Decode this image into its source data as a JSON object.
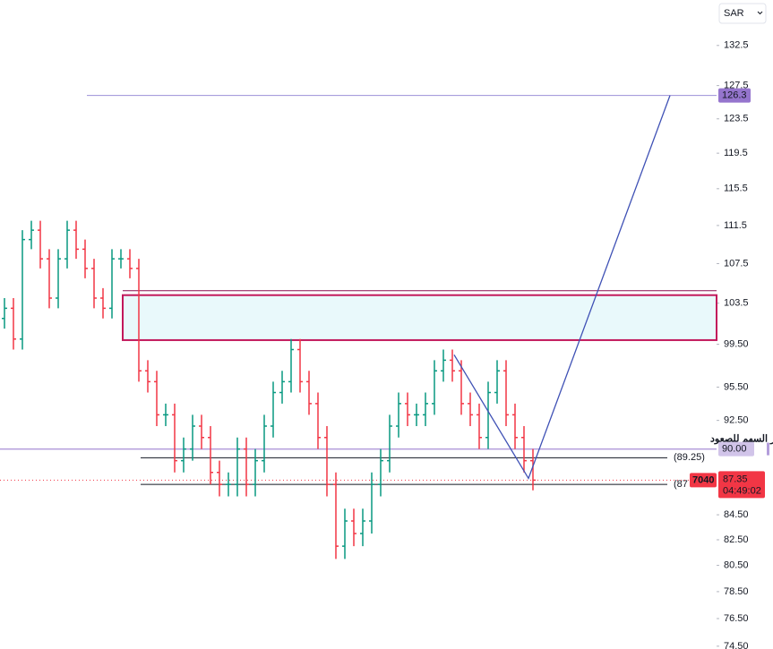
{
  "chart_data": {
    "type": "ohlc",
    "currency": "SAR",
    "open": [
      102,
      103,
      100,
      110,
      111,
      108,
      104,
      108,
      111,
      109,
      107,
      104,
      103,
      108,
      108,
      107,
      97,
      96,
      93,
      93,
      89,
      90,
      92,
      91,
      88,
      87,
      87,
      90,
      87,
      89,
      92,
      95,
      96,
      99,
      96,
      94,
      91,
      87,
      82,
      84,
      83,
      84,
      87,
      89,
      92,
      94,
      93,
      93,
      94,
      97,
      98,
      97,
      94,
      93,
      91,
      95,
      97,
      93,
      91,
      89
    ],
    "high": [
      104,
      104,
      111,
      112,
      112,
      109,
      109,
      112,
      112,
      110,
      108,
      105,
      109,
      109,
      109,
      108,
      98,
      97,
      94,
      94,
      91,
      93,
      93,
      92,
      89,
      88,
      91,
      91,
      90,
      93,
      96,
      97,
      100,
      100,
      97,
      95,
      92,
      88,
      85,
      85,
      85,
      88,
      90,
      93,
      95,
      95,
      94,
      95,
      98,
      99,
      99,
      98,
      95,
      94,
      96,
      98,
      98,
      94,
      92,
      90
    ],
    "low": [
      101,
      99,
      99,
      109,
      107,
      103,
      103,
      107,
      108,
      106,
      103,
      102,
      102,
      107,
      106,
      96,
      95,
      92,
      92,
      88,
      88,
      89,
      90,
      87,
      86,
      86,
      86,
      86,
      86,
      88,
      91,
      94,
      95,
      95,
      93,
      90,
      86,
      81,
      81,
      82,
      82,
      83,
      86,
      88,
      91,
      92,
      92,
      92,
      93,
      96,
      96,
      93,
      92,
      90,
      90,
      94,
      92,
      90,
      88,
      86.5
    ],
    "close": [
      103,
      100,
      110,
      111,
      108,
      104,
      108,
      111,
      109,
      107,
      104,
      103,
      108,
      108,
      107,
      97,
      96,
      93,
      93,
      89,
      90,
      92,
      91,
      88,
      87,
      87,
      90,
      87,
      89,
      92,
      95,
      96,
      99,
      96,
      94,
      91,
      87,
      82,
      84,
      83,
      84,
      87,
      89,
      92,
      94,
      93,
      93,
      94,
      97,
      98,
      97,
      94,
      93,
      91,
      95,
      97,
      93,
      91,
      89,
      87.35
    ],
    "up_color": "#089981",
    "down_color": "#f23645",
    "log_scale": true,
    "ylim": [
      74.3,
      138.4
    ],
    "yticks": [
      132.5,
      127.5,
      123.5,
      119.5,
      115.5,
      111.5,
      107.5,
      103.5,
      {
        "value": 99.5,
        "label": "99.50"
      },
      {
        "value": 95.5,
        "label": "95.50"
      },
      {
        "value": 92.5,
        "label": "92.50"
      },
      {
        "value": 84.5,
        "label": "84.50"
      },
      {
        "value": 82.5,
        "label": "82.50"
      },
      {
        "value": 80.5,
        "label": "80.50"
      },
      {
        "value": 78.5,
        "label": "78.50"
      },
      {
        "value": 76.5,
        "label": "76.50"
      },
      {
        "value": 74.5,
        "label": "74.50"
      }
    ],
    "target": {
      "value": 126.3,
      "label": "126.3"
    },
    "resistance_zone": [
      99.9,
      104.3
    ],
    "breakout_level": {
      "value": 90,
      "label": "90.00"
    },
    "support_levels": [
      {
        "value": 89.25,
        "label": "(89.25)"
      },
      {
        "value": 87,
        "label": "(87"
      }
    ],
    "last_price": {
      "value": 87.35,
      "label": "87.35"
    },
    "countdown": "04:49:02",
    "badge": "7040",
    "projection": [
      98.5,
      87.5,
      126.3
    ],
    "annotation": "تحرر السهم للصعود"
  }
}
